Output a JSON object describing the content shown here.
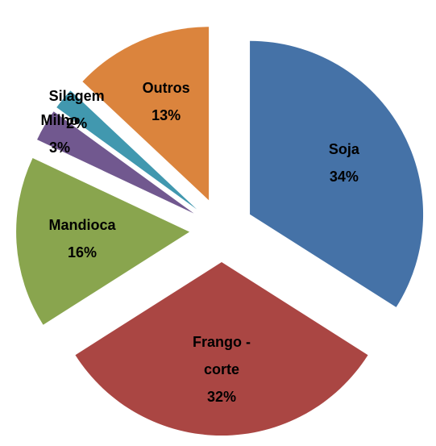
{
  "chart_data": {
    "type": "pie",
    "categories": [
      "Soja",
      "Frango - corte",
      "Mandioca",
      "Milho",
      "Silagem",
      "Outros"
    ],
    "values": [
      34,
      32,
      16,
      3,
      2,
      13
    ],
    "value_labels": [
      "34%",
      "32%",
      "16%",
      "3%",
      "2%",
      "13%"
    ],
    "colors": [
      "#4572a7",
      "#aa4643",
      "#89a54e",
      "#71588f",
      "#4198af",
      "#db843d"
    ],
    "exploded": true
  }
}
